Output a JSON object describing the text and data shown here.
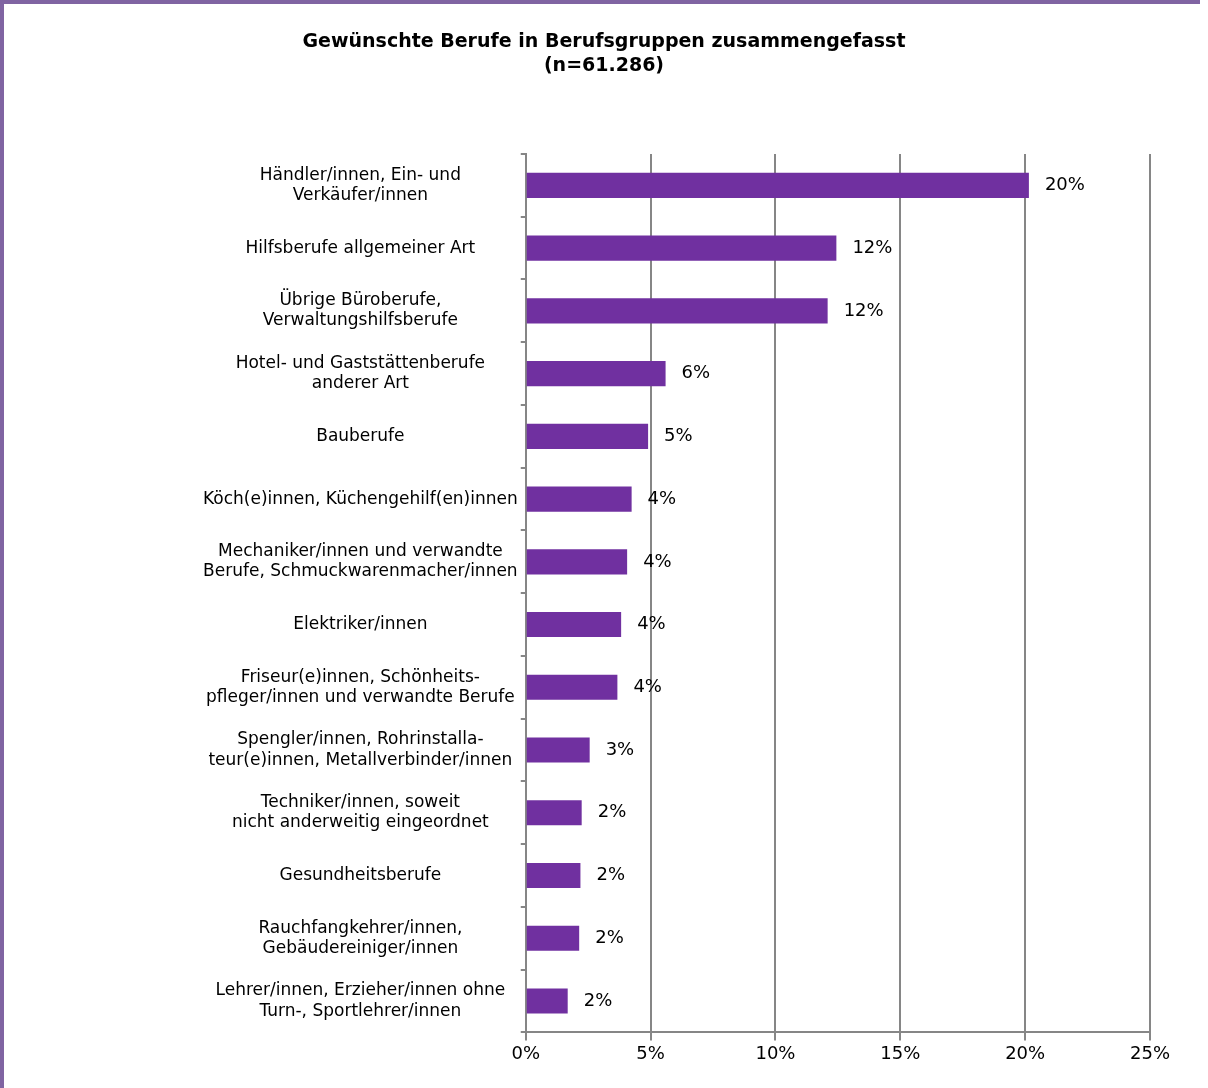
{
  "chart_data": {
    "type": "bar",
    "orientation": "horizontal",
    "title": "Gewünschte Berufe in Berufsgruppen zusammengefasst",
    "subtitle": "(n=61.286)",
    "categories": [
      "Händler/innen, Ein- und\nVerkäufer/innen",
      "Hilfsberufe allgemeiner Art",
      "Übrige Büroberufe,\nVerwaltungshilfsberufe",
      "Hotel- und Gaststättenberufe\nanderer Art",
      "Bauberufe",
      "Köch(e)innen, Küchengehilf(en)innen",
      "Mechaniker/innen und verwandte\nBerufe, Schmuckwarenmacher/innen",
      "Elektriker/innen",
      "Friseur(e)innen, Schönheits-\npfleger/innen und verwandte Berufe",
      "Spengler/innen, Rohrinstalla-\nteur(e)innen, Metallverbinder/innen",
      "Techniker/innen, soweit\nnicht anderweitig eingeordnet",
      "Gesundheitsberufe",
      "Rauchfangkehrer/innen,\nGebäudereiniger/innen",
      "Lehrer/innen, Erzieher/innen ohne\nTurn-, Sportlehrer/innen"
    ],
    "values": [
      20.15,
      12.44,
      12.09,
      5.6,
      4.9,
      4.24,
      4.06,
      3.82,
      3.67,
      2.56,
      2.24,
      2.19,
      2.14,
      1.68
    ],
    "value_labels": [
      "20%",
      "12%",
      "12%",
      "6%",
      "5%",
      "4%",
      "4%",
      "4%",
      "4%",
      "3%",
      "2%",
      "2%",
      "2%",
      "2%"
    ],
    "color": "#7030a0",
    "xlim": [
      0,
      25
    ],
    "xticks": [
      {
        "value": 0,
        "label": "0%"
      },
      {
        "value": 5,
        "label": "5%"
      },
      {
        "value": 10,
        "label": "10%"
      },
      {
        "value": 15,
        "label": "15%"
      },
      {
        "value": 20,
        "label": "20%"
      },
      {
        "value": 25,
        "label": "25%"
      }
    ],
    "grid": "x"
  }
}
